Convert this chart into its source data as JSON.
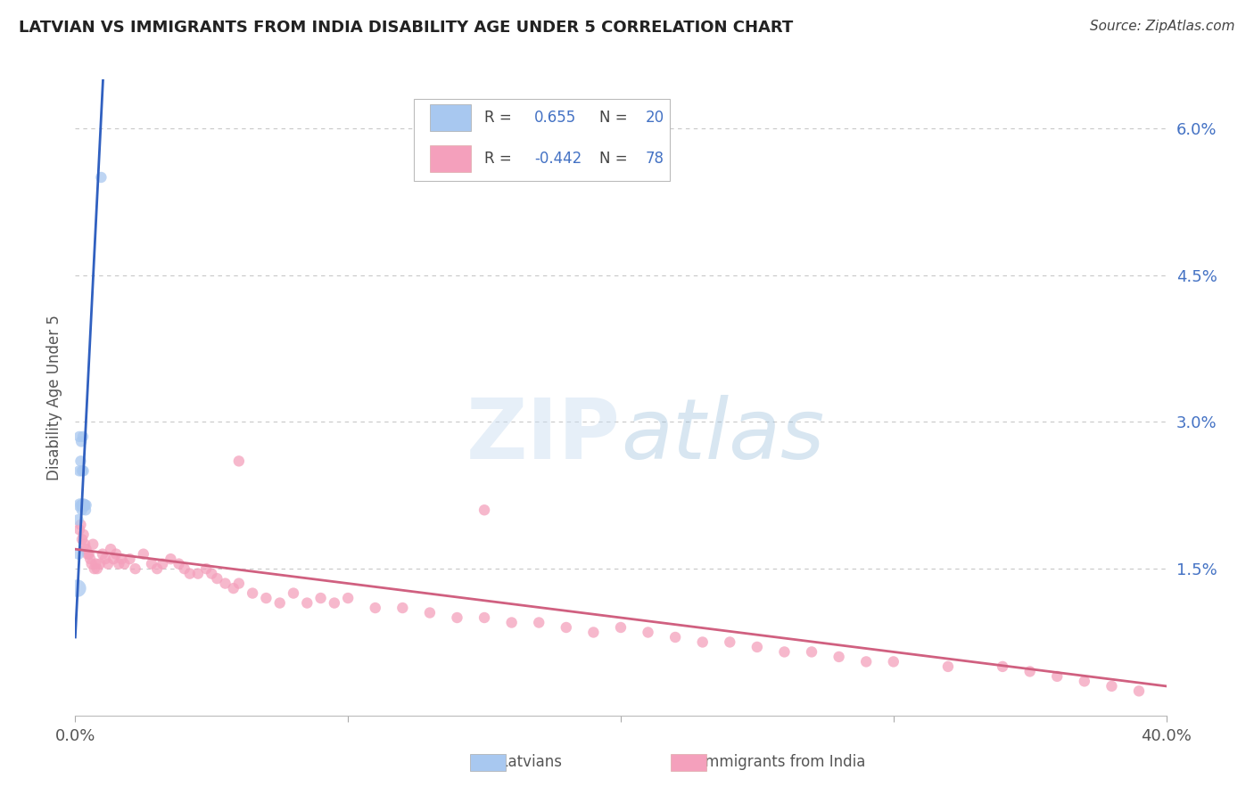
{
  "title": "LATVIAN VS IMMIGRANTS FROM INDIA DISABILITY AGE UNDER 5 CORRELATION CHART",
  "source": "Source: ZipAtlas.com",
  "ylabel": "Disability Age Under 5",
  "r_latvian": 0.655,
  "n_latvian": 20,
  "r_india": -0.442,
  "n_india": 78,
  "xlim": [
    0.0,
    0.4
  ],
  "ylim": [
    0.0,
    0.065
  ],
  "color_latvian": "#A8C8F0",
  "color_india": "#F4A0BC",
  "line_color_latvian": "#3060C0",
  "line_color_india": "#D06080",
  "background_color": "#FFFFFF",
  "grid_color": "#C8C8C8",
  "latvian_x": [
    0.0008,
    0.001,
    0.0012,
    0.0015,
    0.0015,
    0.0018,
    0.002,
    0.002,
    0.0022,
    0.0024,
    0.0025,
    0.0026,
    0.0028,
    0.003,
    0.003,
    0.0032,
    0.0035,
    0.0038,
    0.004,
    0.0095
  ],
  "latvian_y": [
    0.013,
    0.02,
    0.0165,
    0.025,
    0.0285,
    0.0215,
    0.0215,
    0.026,
    0.028,
    0.021,
    0.025,
    0.0215,
    0.0285,
    0.0215,
    0.025,
    0.0215,
    0.0215,
    0.021,
    0.0215,
    0.055
  ],
  "latvian_size": [
    200,
    80,
    80,
    80,
    80,
    120,
    80,
    80,
    80,
    80,
    80,
    80,
    80,
    120,
    80,
    80,
    80,
    80,
    80,
    80
  ],
  "india_x": [
    0.0015,
    0.002,
    0.0025,
    0.003,
    0.0035,
    0.004,
    0.0045,
    0.005,
    0.0055,
    0.006,
    0.0065,
    0.007,
    0.0075,
    0.008,
    0.009,
    0.01,
    0.011,
    0.012,
    0.013,
    0.014,
    0.015,
    0.016,
    0.017,
    0.018,
    0.02,
    0.022,
    0.025,
    0.028,
    0.03,
    0.032,
    0.035,
    0.038,
    0.04,
    0.042,
    0.045,
    0.048,
    0.05,
    0.052,
    0.055,
    0.058,
    0.06,
    0.065,
    0.07,
    0.075,
    0.08,
    0.085,
    0.09,
    0.095,
    0.1,
    0.11,
    0.12,
    0.13,
    0.14,
    0.15,
    0.16,
    0.17,
    0.18,
    0.19,
    0.2,
    0.21,
    0.22,
    0.23,
    0.24,
    0.25,
    0.26,
    0.27,
    0.28,
    0.29,
    0.3,
    0.32,
    0.34,
    0.35,
    0.36,
    0.37,
    0.38,
    0.39,
    0.06,
    0.15
  ],
  "india_y": [
    0.019,
    0.0195,
    0.018,
    0.0185,
    0.0175,
    0.017,
    0.0165,
    0.0165,
    0.016,
    0.0155,
    0.0175,
    0.015,
    0.0155,
    0.015,
    0.0155,
    0.0165,
    0.016,
    0.0155,
    0.017,
    0.016,
    0.0165,
    0.0155,
    0.016,
    0.0155,
    0.016,
    0.015,
    0.0165,
    0.0155,
    0.015,
    0.0155,
    0.016,
    0.0155,
    0.015,
    0.0145,
    0.0145,
    0.015,
    0.0145,
    0.014,
    0.0135,
    0.013,
    0.0135,
    0.0125,
    0.012,
    0.0115,
    0.0125,
    0.0115,
    0.012,
    0.0115,
    0.012,
    0.011,
    0.011,
    0.0105,
    0.01,
    0.01,
    0.0095,
    0.0095,
    0.009,
    0.0085,
    0.009,
    0.0085,
    0.008,
    0.0075,
    0.0075,
    0.007,
    0.0065,
    0.0065,
    0.006,
    0.0055,
    0.0055,
    0.005,
    0.005,
    0.0045,
    0.004,
    0.0035,
    0.003,
    0.0025,
    0.026,
    0.021
  ],
  "india_size": [
    80,
    80,
    80,
    80,
    80,
    80,
    80,
    80,
    80,
    80,
    80,
    80,
    80,
    80,
    80,
    80,
    80,
    80,
    80,
    80,
    80,
    80,
    80,
    80,
    80,
    80,
    80,
    80,
    80,
    80,
    80,
    80,
    80,
    80,
    80,
    80,
    80,
    80,
    80,
    80,
    80,
    80,
    80,
    80,
    80,
    80,
    80,
    80,
    80,
    80,
    80,
    80,
    80,
    80,
    80,
    80,
    80,
    80,
    80,
    80,
    80,
    80,
    80,
    80,
    80,
    80,
    80,
    80,
    80,
    80,
    80,
    80,
    80,
    80,
    80,
    80,
    80,
    80
  ]
}
